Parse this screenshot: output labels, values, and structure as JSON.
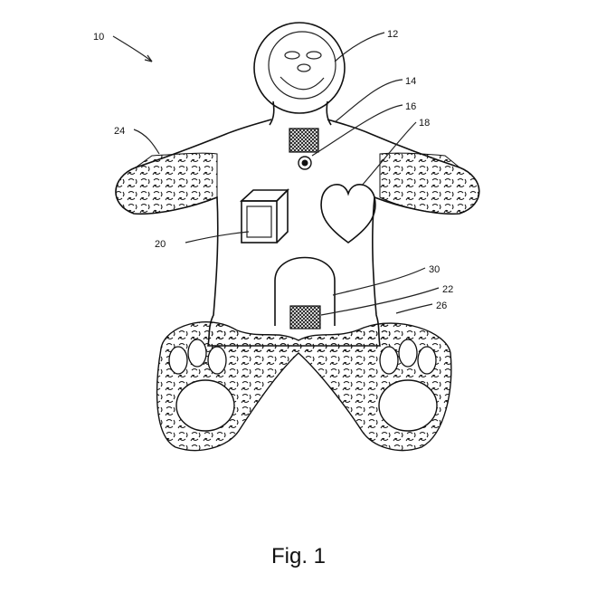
{
  "figure": {
    "caption": "Fig. 1",
    "labels": {
      "overall": "10",
      "face": "12",
      "neck_point": "14",
      "button": "16",
      "heart": "18",
      "box": "20",
      "lower_speaker": "22",
      "arms_fur": "24",
      "legs_fur": "26",
      "arch_door": "30"
    }
  }
}
